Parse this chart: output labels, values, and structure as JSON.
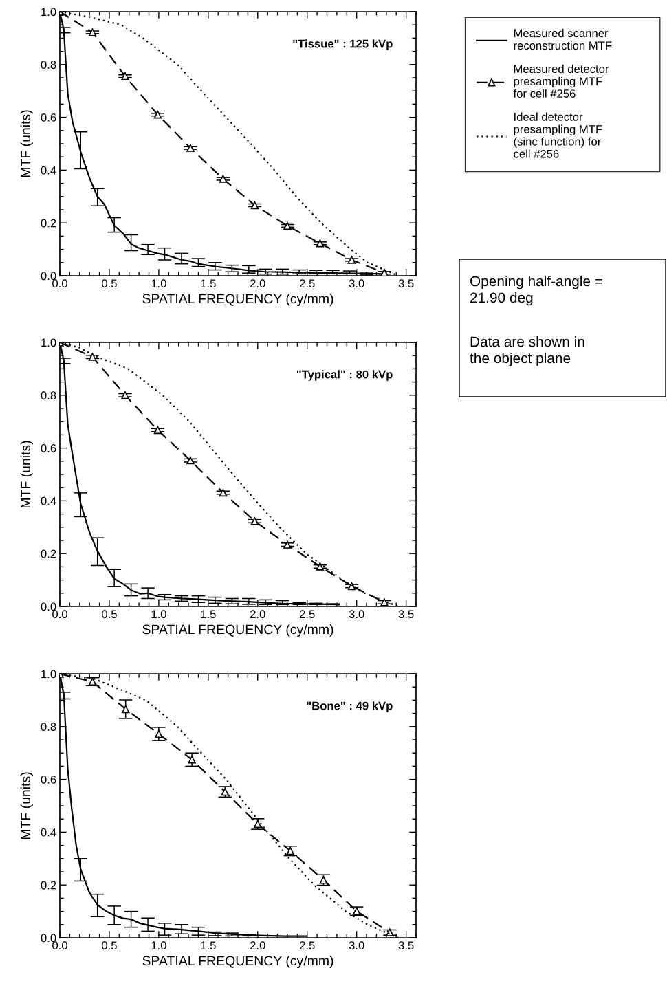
{
  "chart_data": [
    {
      "type": "line",
      "title": "\"Tissue\" : 125 kVp",
      "xlabel": "SPATIAL FREQUENCY (cy/mm)",
      "ylabel": "MTF (units)",
      "xlim": [
        0,
        3.6
      ],
      "ylim": [
        0,
        1.0
      ],
      "xticks": [
        {
          "value": 0,
          "label": "0.0"
        },
        {
          "value": 0.5,
          "label": "0.5"
        },
        {
          "value": 1,
          "label": "1.0"
        },
        {
          "value": 1.5,
          "label": "1.5"
        },
        {
          "value": 2,
          "label": "2.0"
        },
        {
          "value": 2.5,
          "label": "2.5"
        },
        {
          "value": 3,
          "label": "3.0"
        },
        {
          "value": 3.5,
          "label": "3.5"
        }
      ],
      "yticks": [
        {
          "value": 0,
          "label": "0.0"
        },
        {
          "value": 0.2,
          "label": "0.2"
        },
        {
          "value": 0.4,
          "label": "0.4"
        },
        {
          "value": 0.6,
          "label": "0.6"
        },
        {
          "value": 0.8,
          "label": "0.8"
        },
        {
          "value": 1,
          "label": "1.0"
        }
      ],
      "legend": "right",
      "series": [
        {
          "name": "Measured scanner\nreconstruction MTF",
          "color": "#000000",
          "line_style": "solid",
          "marker": "none",
          "x": [
            0,
            0.04,
            0.08,
            0.13,
            0.21,
            0.3,
            0.38,
            0.45,
            0.55,
            0.64,
            0.72,
            0.8,
            0.89,
            0.98,
            1.06,
            1.15,
            1.23,
            1.32,
            1.4,
            1.57,
            1.74,
            1.91,
            2.08,
            2.25,
            2.42,
            2.59,
            2.76,
            2.93,
            3.1,
            3.25
          ],
          "values": [
            1.0,
            0.93,
            0.69,
            0.58,
            0.47,
            0.37,
            0.3,
            0.27,
            0.19,
            0.16,
            0.12,
            0.105,
            0.095,
            0.085,
            0.08,
            0.07,
            0.06,
            0.055,
            0.045,
            0.035,
            0.028,
            0.02,
            0.015,
            0.014,
            0.012,
            0.011,
            0.01,
            0.009,
            0.008,
            0.007
          ],
          "errors": [
            null,
            [
              0.92,
              0.94
            ],
            null,
            null,
            [
              0.405,
              0.545
            ],
            null,
            [
              0.265,
              0.33
            ],
            null,
            [
              0.165,
              0.22
            ],
            null,
            [
              0.095,
              0.155
            ],
            null,
            [
              0.08,
              0.118
            ],
            null,
            [
              0.06,
              0.105
            ],
            null,
            [
              0.045,
              0.085
            ],
            null,
            [
              0.035,
              0.065
            ],
            [
              0.022,
              0.05
            ],
            [
              0.015,
              0.04
            ],
            [
              0.01,
              0.038
            ],
            [
              0.006,
              0.025
            ],
            [
              0.006,
              0.025
            ],
            [
              0.007,
              0.022
            ],
            [
              0.007,
              0.02
            ],
            [
              0.007,
              0.02
            ],
            [
              0.007,
              0.018
            ],
            [
              0.003,
              0.01
            ],
            null
          ]
        },
        {
          "name": "Measured detector\npresampling MTF\nfor cell #256",
          "color": "#000000",
          "line_style": "dashed",
          "marker": "triangle",
          "x": [
            0,
            0.33,
            0.66,
            0.99,
            1.32,
            1.65,
            1.97,
            2.3,
            2.63,
            2.95,
            3.28
          ],
          "values": [
            1.0,
            0.922,
            0.756,
            0.61,
            0.484,
            0.367,
            0.267,
            0.189,
            0.123,
            0.06,
            0.011
          ],
          "errors": [
            null,
            0.005,
            0.005,
            0.005,
            0.005,
            0.005,
            0.005,
            0.005,
            0.005,
            0.005,
            0.005
          ]
        },
        {
          "name": "Ideal detector\npresampling MTF\n(sinc function) for\ncell #256",
          "color": "#000000",
          "line_style": "dotted",
          "marker": "none",
          "x": [
            0,
            0.3,
            0.62,
            0.84,
            1.19,
            1.43,
            1.68,
            1.93,
            2.17,
            2.39,
            2.64,
            2.94,
            3.11,
            3.42
          ],
          "values": [
            1.0,
            0.98,
            0.95,
            0.9,
            0.8,
            0.7,
            0.6,
            0.5,
            0.4,
            0.3,
            0.2,
            0.1,
            0.05,
            0.0
          ]
        }
      ]
    },
    {
      "type": "line",
      "title": "\"Typical\" : 80 kVp",
      "xlabel": "SPATIAL FREQUENCY (cy/mm)",
      "ylabel": "MTF (units)",
      "xlim": [
        0,
        3.6
      ],
      "ylim": [
        0,
        1.0
      ],
      "xticks": [
        {
          "value": 0,
          "label": "0.0"
        },
        {
          "value": 0.5,
          "label": "0.5"
        },
        {
          "value": 1,
          "label": "1.0"
        },
        {
          "value": 1.5,
          "label": "1.5"
        },
        {
          "value": 2,
          "label": "2.0"
        },
        {
          "value": 2.5,
          "label": "2.5"
        },
        {
          "value": 3,
          "label": "3.0"
        },
        {
          "value": 3.5,
          "label": "3.5"
        }
      ],
      "yticks": [
        {
          "value": 0,
          "label": "0.0"
        },
        {
          "value": 0.2,
          "label": "0.2"
        },
        {
          "value": 0.4,
          "label": "0.4"
        },
        {
          "value": 0.6,
          "label": "0.6"
        },
        {
          "value": 0.8,
          "label": "0.8"
        },
        {
          "value": 1,
          "label": "1.0"
        }
      ],
      "series": [
        {
          "color": "#000000",
          "line_style": "solid",
          "marker": "none",
          "x": [
            0,
            0.04,
            0.08,
            0.13,
            0.21,
            0.3,
            0.38,
            0.47,
            0.55,
            0.64,
            0.72,
            0.81,
            0.89,
            0.98,
            1.06,
            1.23,
            1.4,
            1.57,
            1.74,
            1.91,
            2.08,
            2.25,
            2.42,
            2.59,
            2.76,
            2.82
          ],
          "values": [
            1.0,
            0.93,
            0.69,
            0.57,
            0.39,
            0.28,
            0.21,
            0.15,
            0.105,
            0.085,
            0.062,
            0.048,
            0.05,
            0.039,
            0.035,
            0.03,
            0.027,
            0.023,
            0.02,
            0.018,
            0.014,
            0.011,
            0.01,
            0.009,
            0.008,
            0.007
          ],
          "errors": [
            null,
            [
              0.92,
              0.94
            ],
            null,
            null,
            [
              0.34,
              0.43
            ],
            null,
            [
              0.155,
              0.26
            ],
            null,
            [
              0.075,
              0.14
            ],
            null,
            [
              0.04,
              0.085
            ],
            null,
            [
              0.03,
              0.07
            ],
            null,
            [
              0.025,
              0.045
            ],
            [
              0.02,
              0.04
            ],
            [
              0.015,
              0.04
            ],
            [
              0.012,
              0.035
            ],
            [
              0.01,
              0.03
            ],
            [
              0.008,
              0.03
            ],
            [
              0.007,
              0.025
            ],
            [
              0.007,
              0.022
            ],
            [
              0.007,
              0.015
            ],
            [
              0.007,
              0.012
            ],
            [
              0.007,
              0.01
            ],
            null
          ]
        },
        {
          "color": "#000000",
          "line_style": "dashed",
          "marker": "triangle",
          "x": [
            0,
            0.33,
            0.66,
            0.99,
            1.32,
            1.65,
            1.97,
            2.3,
            2.63,
            2.95,
            3.28
          ],
          "values": [
            1.0,
            0.945,
            0.8,
            0.668,
            0.553,
            0.431,
            0.323,
            0.234,
            0.151,
            0.077,
            0.016
          ],
          "errors": [
            null,
            0.006,
            0.006,
            0.006,
            0.006,
            0.006,
            0.006,
            0.006,
            0.006,
            0.006,
            0.006
          ]
        },
        {
          "color": "#000000",
          "line_style": "dotted",
          "marker": "none",
          "x": [
            0,
            0.2,
            0.35,
            0.69,
            1.04,
            1.31,
            1.53,
            1.75,
            1.98,
            2.22,
            2.49,
            2.86,
            3.08,
            3.42
          ],
          "values": [
            1.0,
            0.98,
            0.95,
            0.9,
            0.8,
            0.7,
            0.6,
            0.5,
            0.4,
            0.3,
            0.2,
            0.1,
            0.05,
            0.0
          ]
        }
      ]
    },
    {
      "type": "line",
      "title": "\"Bone\" : 49 kVp",
      "xlabel": "SPATIAL FREQUENCY (cy/mm)",
      "ylabel": "MTF (units)",
      "xlim": [
        0,
        3.6
      ],
      "ylim": [
        0,
        1.0
      ],
      "xticks": [
        {
          "value": 0,
          "label": "0.0"
        },
        {
          "value": 0.5,
          "label": "0.5"
        },
        {
          "value": 1,
          "label": "1.0"
        },
        {
          "value": 1.5,
          "label": "1.5"
        },
        {
          "value": 2,
          "label": "2.0"
        },
        {
          "value": 2.5,
          "label": "2.5"
        },
        {
          "value": 3,
          "label": "3.0"
        },
        {
          "value": 3.5,
          "label": "3.5"
        }
      ],
      "yticks": [
        {
          "value": 0,
          "label": "0.0"
        },
        {
          "value": 0.2,
          "label": "0.2"
        },
        {
          "value": 0.4,
          "label": "0.4"
        },
        {
          "value": 0.6,
          "label": "0.6"
        },
        {
          "value": 0.8,
          "label": "0.8"
        },
        {
          "value": 1,
          "label": "1.0"
        }
      ],
      "series": [
        {
          "color": "#000000",
          "line_style": "solid",
          "marker": "none",
          "x": [
            0,
            0.04,
            0.08,
            0.12,
            0.165,
            0.21,
            0.3,
            0.38,
            0.47,
            0.55,
            0.64,
            0.72,
            0.81,
            0.89,
            0.98,
            1.06,
            1.23,
            1.4,
            1.57,
            1.74,
            1.91,
            2.08,
            2.27,
            2.49
          ],
          "values": [
            1.0,
            0.92,
            0.64,
            0.49,
            0.35,
            0.26,
            0.17,
            0.125,
            0.1,
            0.085,
            0.074,
            0.07,
            0.055,
            0.048,
            0.04,
            0.035,
            0.031,
            0.025,
            0.018,
            0.014,
            0.01,
            0.008,
            0.006,
            0.006
          ],
          "errors": [
            null,
            [
              0.905,
              0.93
            ],
            null,
            null,
            null,
            [
              0.215,
              0.3
            ],
            null,
            [
              0.08,
              0.165
            ],
            null,
            [
              0.05,
              0.12
            ],
            null,
            [
              0.04,
              0.1
            ],
            null,
            [
              0.025,
              0.075
            ],
            null,
            [
              0.01,
              0.055
            ],
            [
              0.015,
              0.05
            ],
            [
              0.01,
              0.04
            ],
            [
              0.008,
              0.022
            ],
            [
              0.007,
              0.018
            ],
            [
              0.007,
              0.012
            ],
            null,
            null,
            null
          ]
        },
        {
          "color": "#000000",
          "line_style": "dashed",
          "marker": "triangle",
          "x": [
            0,
            0.33,
            0.665,
            1.0,
            1.335,
            1.67,
            2.0,
            2.33,
            2.665,
            3.0,
            3.335
          ],
          "values": [
            1.0,
            0.97,
            0.866,
            0.772,
            0.675,
            0.553,
            0.431,
            0.329,
            0.219,
            0.101,
            0.02
          ],
          "errors": [
            null,
            0.015,
            0.035,
            0.025,
            0.025,
            0.02,
            0.02,
            0.018,
            0.02,
            0.016,
            0.01
          ]
        },
        {
          "color": "#000000",
          "line_style": "dotted",
          "marker": "none",
          "x": [
            0,
            0.35,
            0.55,
            0.87,
            1.19,
            1.43,
            1.68,
            1.89,
            2.1,
            2.32,
            2.57,
            2.89,
            3.11,
            3.42
          ],
          "values": [
            1.0,
            0.98,
            0.95,
            0.9,
            0.8,
            0.7,
            0.6,
            0.5,
            0.4,
            0.3,
            0.2,
            0.1,
            0.05,
            0.0
          ]
        }
      ]
    },
    {
      "type": "other",
      "annotations": [
        "Opening half-angle =\n21.90 deg",
        "Data are shown in\nthe object plane"
      ]
    }
  ]
}
